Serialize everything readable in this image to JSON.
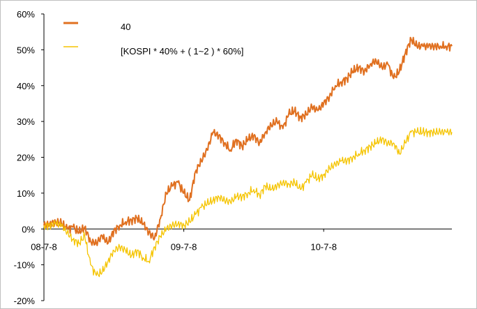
{
  "chart_data": {
    "type": "line",
    "title": "",
    "xlabel": "",
    "ylabel": "",
    "ylim": [
      -20,
      60
    ],
    "y_ticks": [
      -20,
      -10,
      0,
      10,
      20,
      30,
      40,
      50,
      60
    ],
    "y_tick_labels": [
      "-20%",
      "-10%",
      "0%",
      "10%",
      "20%",
      "30%",
      "40%",
      "50%",
      "60%"
    ],
    "x_tick_labels": [
      "08-7-8",
      "09-7-8",
      "10-7-8"
    ],
    "x_tick_positions": [
      0,
      12,
      24
    ],
    "xlim": [
      0,
      35
    ],
    "grid": false,
    "legend_position": "top-left",
    "series": [
      {
        "name": "40",
        "color": "#e07020",
        "x": [
          0,
          0.5,
          1,
          1.5,
          2,
          2.5,
          3,
          3.5,
          4,
          4.5,
          5,
          5.5,
          6,
          6.5,
          7,
          7.5,
          8,
          8.5,
          9,
          9.5,
          10,
          10.5,
          11,
          11.5,
          12,
          12.5,
          13,
          13.5,
          14,
          14.5,
          15,
          15.5,
          16,
          16.5,
          17,
          17.5,
          18,
          18.5,
          19,
          19.5,
          20,
          20.5,
          21,
          21.5,
          22,
          22.5,
          23,
          23.5,
          24,
          24.5,
          25,
          25.5,
          26,
          26.5,
          27,
          27.5,
          28,
          28.5,
          29,
          29.5,
          30,
          30.5,
          31,
          31.5,
          32,
          32.5,
          33,
          33.5,
          34,
          34.5,
          35
        ],
        "values": [
          1,
          1.5,
          2,
          1.5,
          0,
          0.5,
          -1,
          0.5,
          -3.5,
          -4,
          -2,
          -4,
          -0.5,
          1,
          2,
          2.5,
          3,
          1.5,
          -1,
          -2.5,
          3,
          10,
          12,
          13,
          10,
          8,
          16,
          19,
          22,
          27,
          26,
          24,
          22,
          25,
          23,
          25,
          26,
          24,
          27,
          29,
          30,
          28,
          32,
          33,
          31,
          32,
          34,
          33,
          35,
          37,
          40,
          41,
          42,
          44,
          45,
          44,
          46,
          47,
          45,
          46,
          42,
          44,
          49,
          53,
          51,
          51,
          51,
          51,
          51,
          51,
          51
        ]
      },
      {
        "name": "[KOSPI * 40% + ( 1~2 ) * 60%]",
        "color": "#f5c400",
        "x": [
          0,
          0.5,
          1,
          1.5,
          2,
          2.5,
          3,
          3.5,
          4,
          4.5,
          5,
          5.5,
          6,
          6.5,
          7,
          7.5,
          8,
          8.5,
          9,
          9.5,
          10,
          10.5,
          11,
          11.5,
          12,
          12.5,
          13,
          13.5,
          14,
          14.5,
          15,
          15.5,
          16,
          16.5,
          17,
          17.5,
          18,
          18.5,
          19,
          19.5,
          20,
          20.5,
          21,
          21.5,
          22,
          22.5,
          23,
          23.5,
          24,
          24.5,
          25,
          25.5,
          26,
          26.5,
          27,
          27.5,
          28,
          28.5,
          29,
          29.5,
          30,
          30.5,
          31,
          31.5,
          32,
          32.5,
          33,
          33.5,
          34,
          34.5,
          35
        ],
        "values": [
          1,
          1,
          1.5,
          1,
          -1,
          -3,
          -4,
          -2,
          -10,
          -13,
          -12,
          -9,
          -6,
          -5,
          -6,
          -7.5,
          -6,
          -8,
          -9,
          -5,
          -2,
          0,
          1,
          1.5,
          1,
          2,
          4,
          6,
          7,
          8,
          9,
          8,
          7.5,
          9,
          9,
          10,
          11,
          9.5,
          12,
          11,
          12,
          13,
          12.5,
          13,
          11,
          13,
          15,
          14,
          15,
          17,
          18,
          19,
          19,
          20,
          21,
          22,
          23,
          24,
          25,
          24,
          24,
          21,
          24,
          27,
          27,
          27,
          27,
          27,
          27,
          27,
          27
        ]
      }
    ]
  }
}
